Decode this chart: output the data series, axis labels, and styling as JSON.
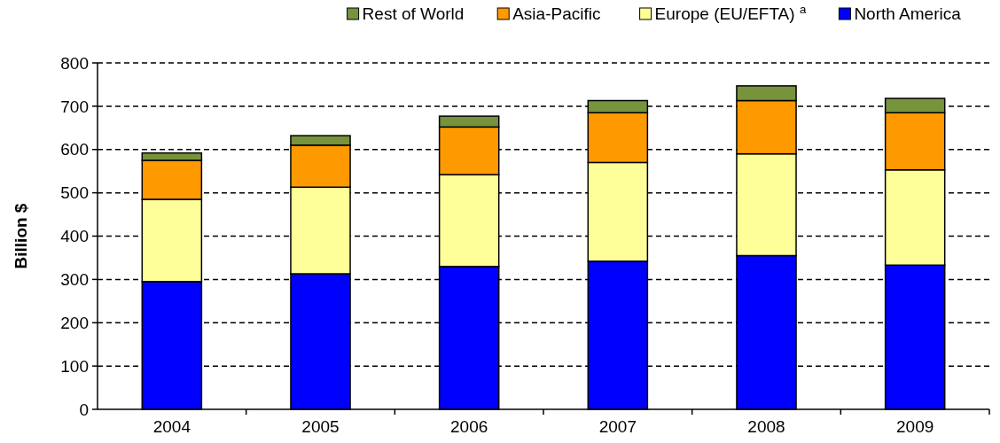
{
  "chart_data": {
    "type": "bar",
    "stacked": true,
    "ylabel": "Billion $",
    "categories": [
      "2004",
      "2005",
      "2006",
      "2007",
      "2008",
      "2009"
    ],
    "series": [
      {
        "name": "North America",
        "color": "#0000ff",
        "values": [
          295,
          313,
          330,
          342,
          355,
          333
        ]
      },
      {
        "name": "Europe (EU/EFTA) $^{a}$",
        "color": "#ffff99",
        "values": [
          190,
          200,
          212,
          228,
          235,
          220
        ]
      },
      {
        "name": "Asia-Pacific",
        "color": "#ff9900",
        "values": [
          90,
          97,
          110,
          115,
          123,
          132
        ]
      },
      {
        "name": "Rest of World",
        "color": "#77933c",
        "values": [
          17,
          22,
          25,
          28,
          34,
          33
        ]
      }
    ],
    "ylim": [
      0,
      800
    ],
    "yticks": [
      0,
      100,
      200,
      300,
      400,
      500,
      600,
      700,
      800
    ],
    "grid": "y",
    "legend": "top right"
  }
}
